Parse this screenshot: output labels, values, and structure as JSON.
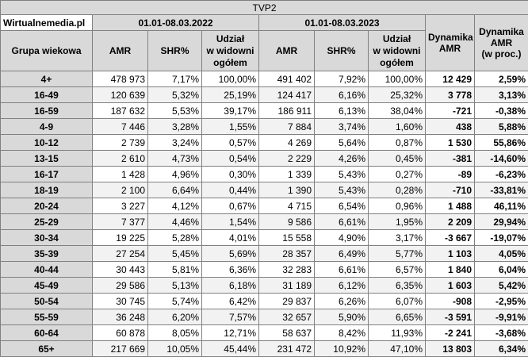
{
  "title": "TVP2",
  "site": "Wirtualnemedia.pl",
  "period1": "01.01-08.03.2022",
  "period2": "01.01-08.03.2023",
  "columns": {
    "group": "Grupa wiekowa",
    "amr": "AMR",
    "shr": "SHR%",
    "udzial_l1": "Udział",
    "udzial_l2": "w widowni",
    "udzial_l3": "ogółem",
    "dyn_amr_l1": "Dynamika",
    "dyn_amr_l2": "AMR",
    "dyn_pct_l1": "Dynamika",
    "dyn_pct_l2": "AMR",
    "dyn_pct_l3": "(w proc.)"
  },
  "rows": [
    {
      "group": "4+",
      "amr1": "478 973",
      "shr1": "7,17%",
      "ud1": "100,00%",
      "amr2": "491 402",
      "shr2": "7,92%",
      "ud2": "100,00%",
      "dyn": "12 429",
      "dynp": "2,59%"
    },
    {
      "group": "16-49",
      "amr1": "120 639",
      "shr1": "5,32%",
      "ud1": "25,19%",
      "amr2": "124 417",
      "shr2": "6,16%",
      "ud2": "25,32%",
      "dyn": "3 778",
      "dynp": "3,13%"
    },
    {
      "group": "16-59",
      "amr1": "187 632",
      "shr1": "5,53%",
      "ud1": "39,17%",
      "amr2": "186 911",
      "shr2": "6,13%",
      "ud2": "38,04%",
      "dyn": "-721",
      "dynp": "-0,38%"
    },
    {
      "group": "4-9",
      "amr1": "7 446",
      "shr1": "3,28%",
      "ud1": "1,55%",
      "amr2": "7 884",
      "shr2": "3,74%",
      "ud2": "1,60%",
      "dyn": "438",
      "dynp": "5,88%"
    },
    {
      "group": "10-12",
      "amr1": "2 739",
      "shr1": "3,24%",
      "ud1": "0,57%",
      "amr2": "4 269",
      "shr2": "5,64%",
      "ud2": "0,87%",
      "dyn": "1 530",
      "dynp": "55,86%"
    },
    {
      "group": "13-15",
      "amr1": "2 610",
      "shr1": "4,73%",
      "ud1": "0,54%",
      "amr2": "2 229",
      "shr2": "4,26%",
      "ud2": "0,45%",
      "dyn": "-381",
      "dynp": "-14,60%"
    },
    {
      "group": "16-17",
      "amr1": "1 428",
      "shr1": "4,96%",
      "ud1": "0,30%",
      "amr2": "1 339",
      "shr2": "5,43%",
      "ud2": "0,27%",
      "dyn": "-89",
      "dynp": "-6,23%"
    },
    {
      "group": "18-19",
      "amr1": "2 100",
      "shr1": "6,64%",
      "ud1": "0,44%",
      "amr2": "1 390",
      "shr2": "5,43%",
      "ud2": "0,28%",
      "dyn": "-710",
      "dynp": "-33,81%"
    },
    {
      "group": "20-24",
      "amr1": "3 227",
      "shr1": "4,12%",
      "ud1": "0,67%",
      "amr2": "4 715",
      "shr2": "6,54%",
      "ud2": "0,96%",
      "dyn": "1 488",
      "dynp": "46,11%"
    },
    {
      "group": "25-29",
      "amr1": "7 377",
      "shr1": "4,46%",
      "ud1": "1,54%",
      "amr2": "9 586",
      "shr2": "6,61%",
      "ud2": "1,95%",
      "dyn": "2 209",
      "dynp": "29,94%"
    },
    {
      "group": "30-34",
      "amr1": "19 225",
      "shr1": "5,28%",
      "ud1": "4,01%",
      "amr2": "15 558",
      "shr2": "4,90%",
      "ud2": "3,17%",
      "dyn": "-3 667",
      "dynp": "-19,07%"
    },
    {
      "group": "35-39",
      "amr1": "27 254",
      "shr1": "5,45%",
      "ud1": "5,69%",
      "amr2": "28 357",
      "shr2": "6,49%",
      "ud2": "5,77%",
      "dyn": "1 103",
      "dynp": "4,05%"
    },
    {
      "group": "40-44",
      "amr1": "30 443",
      "shr1": "5,81%",
      "ud1": "6,36%",
      "amr2": "32 283",
      "shr2": "6,61%",
      "ud2": "6,57%",
      "dyn": "1 840",
      "dynp": "6,04%"
    },
    {
      "group": "45-49",
      "amr1": "29 586",
      "shr1": "5,13%",
      "ud1": "6,18%",
      "amr2": "31 189",
      "shr2": "6,12%",
      "ud2": "6,35%",
      "dyn": "1 603",
      "dynp": "5,42%"
    },
    {
      "group": "50-54",
      "amr1": "30 745",
      "shr1": "5,74%",
      "ud1": "6,42%",
      "amr2": "29 837",
      "shr2": "6,26%",
      "ud2": "6,07%",
      "dyn": "-908",
      "dynp": "-2,95%"
    },
    {
      "group": "55-59",
      "amr1": "36 248",
      "shr1": "6,20%",
      "ud1": "7,57%",
      "amr2": "32 657",
      "shr2": "5,90%",
      "ud2": "6,65%",
      "dyn": "-3 591",
      "dynp": "-9,91%"
    },
    {
      "group": "60-64",
      "amr1": "60 878",
      "shr1": "8,05%",
      "ud1": "12,71%",
      "amr2": "58 637",
      "shr2": "8,42%",
      "ud2": "11,93%",
      "dyn": "-2 241",
      "dynp": "-3,68%"
    },
    {
      "group": "65+",
      "amr1": "217 669",
      "shr1": "10,05%",
      "ud1": "45,44%",
      "amr2": "231 472",
      "shr2": "10,92%",
      "ud2": "47,10%",
      "dyn": "13 803",
      "dynp": "6,34%"
    }
  ]
}
